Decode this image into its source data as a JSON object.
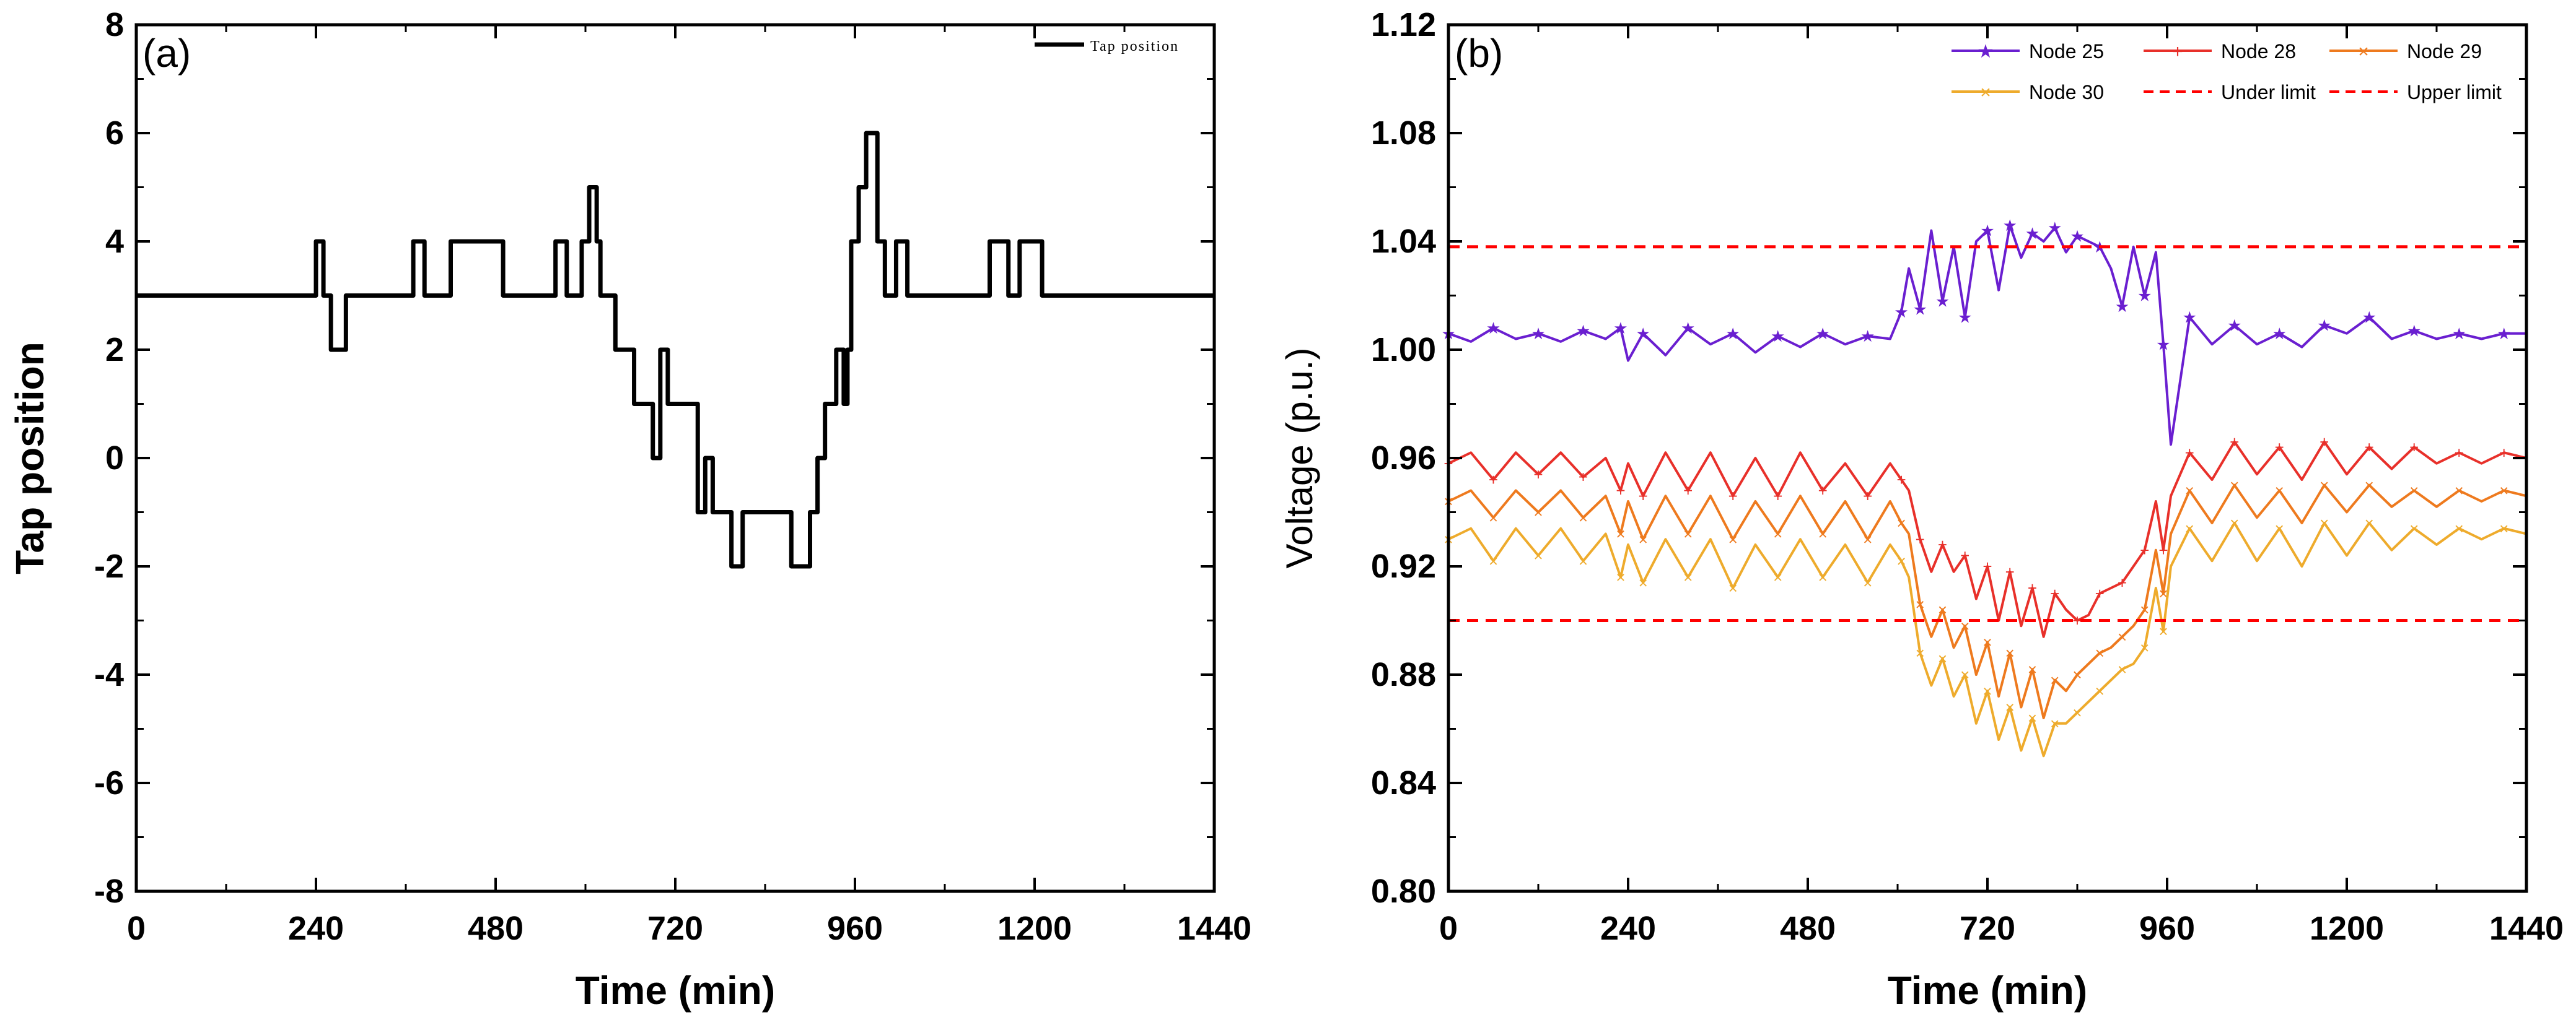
{
  "chart_data": [
    {
      "type": "line",
      "panel_label": "(a)",
      "title": "",
      "xlabel": "Time (min)",
      "ylabel": "Tap position",
      "xlim": [
        0,
        1440
      ],
      "ylim": [
        -8,
        8
      ],
      "xticks": [
        0,
        240,
        480,
        720,
        960,
        1200,
        1440
      ],
      "yticks": [
        -8,
        -6,
        -4,
        -2,
        0,
        2,
        4,
        6,
        8
      ],
      "legend_position": "top-right",
      "series": [
        {
          "name": "Tap position",
          "color": "#000000",
          "step": true,
          "x": [
            0,
            240,
            250,
            260,
            280,
            370,
            385,
            420,
            480,
            490,
            560,
            575,
            595,
            605,
            615,
            620,
            640,
            665,
            690,
            700,
            710,
            750,
            760,
            770,
            795,
            810,
            875,
            900,
            910,
            920,
            935,
            945,
            950,
            955,
            965,
            975,
            990,
            1000,
            1015,
            1030,
            1140,
            1165,
            1180,
            1210,
            1440
          ],
          "values": [
            3,
            4,
            3,
            2,
            3,
            4,
            3,
            4,
            4,
            3,
            4,
            3,
            4,
            5,
            4,
            3,
            2,
            1,
            0,
            2,
            1,
            -1,
            0,
            -1,
            -2,
            -1,
            -2,
            -1,
            0,
            1,
            2,
            1,
            2,
            4,
            5,
            6,
            4,
            3,
            4,
            3,
            4,
            3,
            4,
            3,
            3
          ]
        }
      ]
    },
    {
      "type": "line",
      "panel_label": "(b)",
      "title": "",
      "xlabel": "Time (min)",
      "ylabel": "Voltage (p.u.)",
      "xlim": [
        0,
        1440
      ],
      "ylim": [
        0.8,
        1.12
      ],
      "xticks": [
        0,
        240,
        480,
        720,
        960,
        1200,
        1440
      ],
      "yticks": [
        0.8,
        0.84,
        0.88,
        0.92,
        0.96,
        1.0,
        1.04,
        1.08,
        1.12
      ],
      "legend_position": "top-right",
      "x": [
        0,
        30,
        60,
        90,
        120,
        150,
        180,
        210,
        230,
        240,
        260,
        290,
        320,
        350,
        380,
        410,
        440,
        470,
        500,
        530,
        560,
        590,
        605,
        615,
        630,
        645,
        660,
        675,
        690,
        705,
        720,
        735,
        750,
        765,
        780,
        795,
        810,
        825,
        840,
        855,
        870,
        885,
        900,
        915,
        930,
        945,
        955,
        965,
        990,
        1020,
        1050,
        1080,
        1110,
        1140,
        1170,
        1200,
        1230,
        1260,
        1290,
        1320,
        1350,
        1380,
        1410,
        1440
      ],
      "series": [
        {
          "name": "Node 25",
          "color": "#6a1fd0",
          "marker": "★",
          "values": [
            1.006,
            1.003,
            1.008,
            1.004,
            1.006,
            1.003,
            1.007,
            1.004,
            1.008,
            0.996,
            1.006,
            0.998,
            1.008,
            1.002,
            1.006,
            0.999,
            1.005,
            1.001,
            1.006,
            1.002,
            1.005,
            1.004,
            1.014,
            1.03,
            1.015,
            1.044,
            1.018,
            1.038,
            1.012,
            1.04,
            1.044,
            1.022,
            1.046,
            1.034,
            1.043,
            1.04,
            1.045,
            1.036,
            1.042,
            1.04,
            1.038,
            1.03,
            1.016,
            1.038,
            1.02,
            1.036,
            1.002,
            0.965,
            1.012,
            1.002,
            1.009,
            1.002,
            1.006,
            1.001,
            1.009,
            1.006,
            1.012,
            1.004,
            1.007,
            1.004,
            1.006,
            1.004,
            1.006,
            1.006
          ]
        },
        {
          "name": "Node 28",
          "color": "#e8302a",
          "marker": "+",
          "values": [
            0.958,
            0.962,
            0.952,
            0.962,
            0.954,
            0.962,
            0.953,
            0.96,
            0.948,
            0.958,
            0.946,
            0.962,
            0.948,
            0.962,
            0.946,
            0.96,
            0.946,
            0.962,
            0.948,
            0.958,
            0.946,
            0.958,
            0.952,
            0.948,
            0.93,
            0.918,
            0.928,
            0.918,
            0.924,
            0.908,
            0.92,
            0.9,
            0.918,
            0.898,
            0.912,
            0.894,
            0.91,
            0.904,
            0.9,
            0.902,
            0.91,
            0.912,
            0.914,
            0.92,
            0.926,
            0.944,
            0.926,
            0.946,
            0.962,
            0.952,
            0.966,
            0.954,
            0.964,
            0.952,
            0.966,
            0.954,
            0.964,
            0.956,
            0.964,
            0.958,
            0.962,
            0.958,
            0.962,
            0.96
          ]
        },
        {
          "name": "Node 29",
          "color": "#ee7a1e",
          "marker": "×",
          "values": [
            0.944,
            0.948,
            0.938,
            0.948,
            0.94,
            0.948,
            0.938,
            0.946,
            0.932,
            0.944,
            0.93,
            0.946,
            0.932,
            0.946,
            0.93,
            0.944,
            0.932,
            0.946,
            0.932,
            0.944,
            0.93,
            0.944,
            0.936,
            0.932,
            0.906,
            0.894,
            0.904,
            0.89,
            0.898,
            0.88,
            0.892,
            0.872,
            0.888,
            0.868,
            0.882,
            0.864,
            0.878,
            0.874,
            0.88,
            0.884,
            0.888,
            0.89,
            0.894,
            0.898,
            0.904,
            0.926,
            0.91,
            0.932,
            0.948,
            0.936,
            0.95,
            0.938,
            0.948,
            0.936,
            0.95,
            0.94,
            0.95,
            0.942,
            0.948,
            0.942,
            0.948,
            0.944,
            0.948,
            0.946
          ]
        },
        {
          "name": "Node 30",
          "color": "#eeab2c",
          "marker": "×",
          "values": [
            0.93,
            0.934,
            0.922,
            0.934,
            0.924,
            0.934,
            0.922,
            0.932,
            0.916,
            0.928,
            0.914,
            0.93,
            0.916,
            0.93,
            0.912,
            0.928,
            0.916,
            0.93,
            0.916,
            0.928,
            0.914,
            0.928,
            0.922,
            0.916,
            0.888,
            0.876,
            0.886,
            0.872,
            0.88,
            0.862,
            0.874,
            0.856,
            0.868,
            0.852,
            0.864,
            0.85,
            0.862,
            0.862,
            0.866,
            0.87,
            0.874,
            0.878,
            0.882,
            0.884,
            0.89,
            0.912,
            0.896,
            0.92,
            0.934,
            0.922,
            0.936,
            0.922,
            0.934,
            0.92,
            0.936,
            0.924,
            0.936,
            0.926,
            0.934,
            0.928,
            0.934,
            0.93,
            0.934,
            0.932
          ]
        },
        {
          "name": "Under limit",
          "color": "#ff0000",
          "dashed": true,
          "constant": 0.9
        },
        {
          "name": "Upper limit",
          "color": "#ff0000",
          "dashed": true,
          "constant": 1.038
        }
      ]
    }
  ]
}
